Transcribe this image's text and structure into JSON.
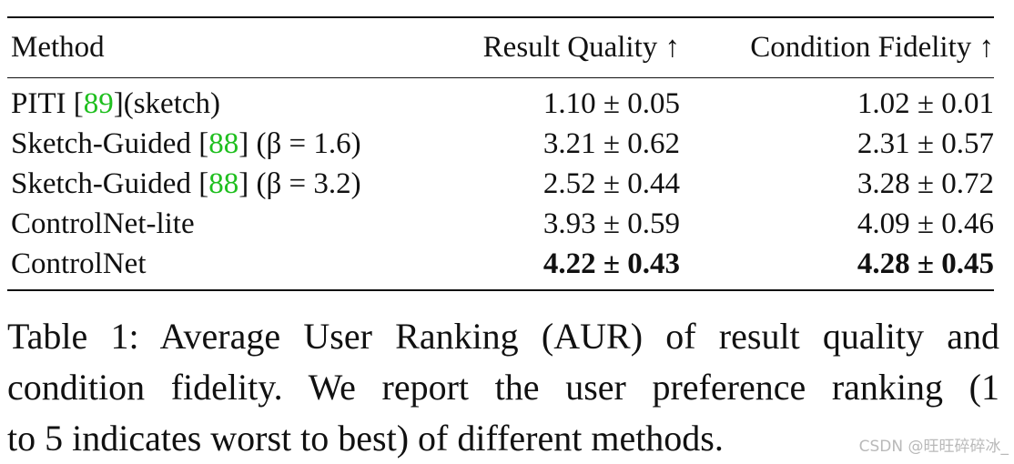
{
  "table": {
    "headers": {
      "method": "Method",
      "quality": "Result Quality ↑",
      "fidelity": "Condition Fidelity ↑"
    },
    "rows": [
      {
        "method_name": "PITI [",
        "cite": "89",
        "method_suffix": "](sketch)",
        "beta": "",
        "quality": "1.10 ± 0.05",
        "fidelity": "1.02 ± 0.01",
        "bold": false
      },
      {
        "method_name": "Sketch-Guided [",
        "cite": "88",
        "method_suffix": "] (",
        "beta": "β = 1.6)",
        "quality": "3.21 ± 0.62",
        "fidelity": "2.31 ± 0.57",
        "bold": false
      },
      {
        "method_name": "Sketch-Guided [",
        "cite": "88",
        "method_suffix": "] (",
        "beta": "β = 3.2)",
        "quality": "2.52 ± 0.44",
        "fidelity": "3.28 ± 0.72",
        "bold": false
      },
      {
        "method_name": "ControlNet-lite",
        "cite": "",
        "method_suffix": "",
        "beta": "",
        "quality": "3.93 ± 0.59",
        "fidelity": "4.09 ± 0.46",
        "bold": false
      },
      {
        "method_name": "ControlNet",
        "cite": "",
        "method_suffix": "",
        "beta": "",
        "quality": "4.22 ± 0.43",
        "fidelity": "4.28 ± 0.45",
        "bold": true
      }
    ]
  },
  "caption": {
    "line1": "Table 1: Average User Ranking (AUR) of result quality and",
    "line2": "condition fidelity. We report the user preference ranking (1",
    "line3": "to 5 indicates worst to best) of different methods."
  },
  "watermark": "CSDN @旺旺碎碎冰_",
  "colors": {
    "citation": "#1fbf1f",
    "text": "#111111",
    "watermark": "#b9b9b9"
  }
}
